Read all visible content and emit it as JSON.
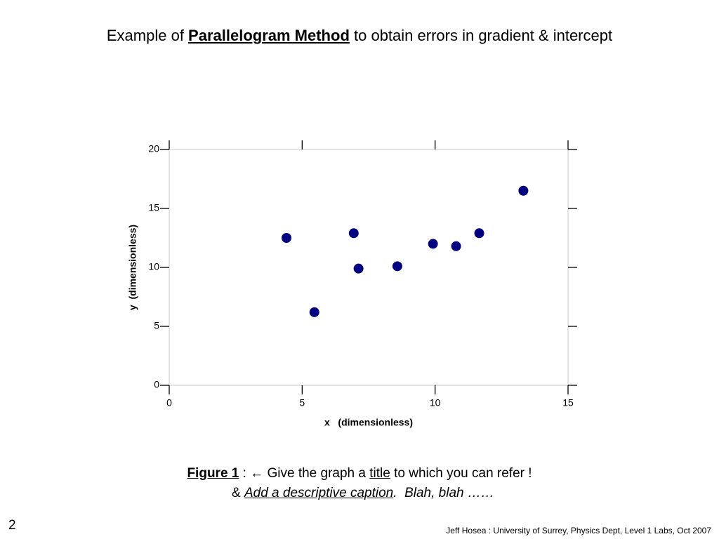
{
  "title": {
    "prefix": "Example of ",
    "emphasis": "Parallelogram Method",
    "suffix": " to obtain errors in gradient & intercept"
  },
  "chart_data": {
    "type": "scatter",
    "x_label": "x   (dimensionless)",
    "y_label": "y  (dimensionless)",
    "x": [
      4.41,
      5.46,
      6.94,
      7.12,
      8.58,
      9.92,
      10.79,
      11.66,
      13.32
    ],
    "values": [
      12.5,
      6.2,
      12.9,
      9.9,
      10.1,
      12.0,
      11.8,
      12.9,
      16.5
    ],
    "color": "#000080",
    "xlim": [
      0,
      15
    ],
    "xticks": [
      0,
      5,
      10,
      15
    ],
    "ylim": [
      0,
      20
    ],
    "yticks": [
      0,
      5,
      10,
      15,
      20
    ]
  },
  "caption": {
    "line1": {
      "figure": "Figure 1",
      "sep": " : ",
      "arrow": "←",
      "text1": " Give the graph a ",
      "title_word": "title",
      "text2": " to which you can refer !"
    },
    "line2": {
      "amp": "& ",
      "link": "Add a descriptive caption",
      "rest": ".  Blah, blah ……"
    }
  },
  "page_number": "2",
  "footer": "Jeff Hosea : University of Surrey, Physics Dept, Level 1 Labs, Oct 2007"
}
